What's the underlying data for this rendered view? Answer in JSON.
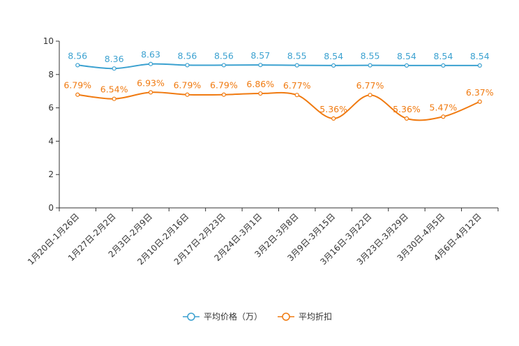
{
  "chart_data": {
    "type": "line",
    "categories": [
      "1月20日-1月26日",
      "1月27日-2月2日",
      "2月3日-2月9日",
      "2月10日-2月16日",
      "2月17日-2月23日",
      "2月24日-3月1日",
      "3月2日-3月8日",
      "3月9日-3月15日",
      "3月16日-3月22日",
      "3月23日-3月29日",
      "3月30日-4月5日",
      "4月6日-4月12日"
    ],
    "series": [
      {
        "name": "平均价格（万）",
        "color": "#3ba1d0",
        "values": [
          8.56,
          8.36,
          8.63,
          8.56,
          8.56,
          8.57,
          8.55,
          8.54,
          8.55,
          8.54,
          8.54,
          8.54
        ],
        "labels": [
          "8.56",
          "8.36",
          "8.63",
          "8.56",
          "8.56",
          "8.57",
          "8.55",
          "8.54",
          "8.55",
          "8.54",
          "8.54",
          "8.54"
        ]
      },
      {
        "name": "平均折扣",
        "color": "#f07a10",
        "values": [
          6.79,
          6.54,
          6.93,
          6.79,
          6.79,
          6.86,
          6.77,
          5.36,
          6.77,
          5.36,
          5.47,
          6.37
        ],
        "labels": [
          "6.79%",
          "6.54%",
          "6.93%",
          "6.79%",
          "6.79%",
          "6.86%",
          "6.77%",
          "5.36%",
          "6.77%",
          "5.36%",
          "5.47%",
          "6.37%"
        ]
      }
    ],
    "yticks": [
      "0",
      "2",
      "4",
      "6",
      "8",
      "10"
    ],
    "ylim": [
      0,
      10
    ],
    "title": "",
    "xlabel": "",
    "ylabel": "",
    "grid": false,
    "legend_position": "bottom-center"
  }
}
